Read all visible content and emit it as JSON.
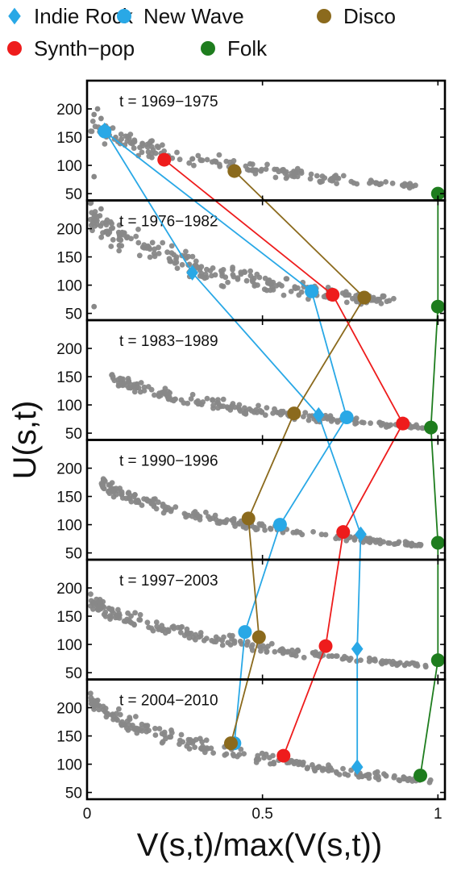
{
  "chart_data": {
    "type": "scatter",
    "xlabel": "V(s,t)/max(V(s,t))",
    "ylabel": "U(s,t)",
    "xlim": [
      0,
      1.02
    ],
    "ylim": [
      38,
      250
    ],
    "x_ticks": [
      0,
      0.5,
      1
    ],
    "x_tick_labels": [
      "0",
      "0.5",
      "1"
    ],
    "y_ticks": [
      50,
      100,
      150,
      200
    ],
    "y_tick_labels": [
      "50",
      "100",
      "150",
      "200"
    ],
    "grid": false,
    "legend_position": "top",
    "panels": [
      "t = 1969−1975",
      "t = 1976−1982",
      "t = 1983−1989",
      "t = 1990−1996",
      "t = 1997−2003",
      "t = 2004−2010"
    ],
    "series": [
      {
        "name": "Indie Rock",
        "color": "#29a8e6",
        "marker": "diamond",
        "points": [
          [
            0.05,
            162
          ],
          [
            0.3,
            122
          ],
          [
            0.66,
            82
          ],
          [
            0.78,
            83
          ],
          [
            0.77,
            92
          ],
          [
            0.77,
            95
          ]
        ]
      },
      {
        "name": "New Wave",
        "color": "#29a8e6",
        "marker": "circle",
        "points": [
          [
            0.05,
            160
          ],
          [
            0.64,
            89
          ],
          [
            0.74,
            78
          ],
          [
            0.55,
            100
          ],
          [
            0.45,
            122
          ],
          [
            0.42,
            137
          ]
        ]
      },
      {
        "name": "Disco",
        "color": "#8b6a1d",
        "marker": "circle",
        "points": [
          [
            0.42,
            90
          ],
          [
            0.79,
            78
          ],
          [
            0.59,
            85
          ],
          [
            0.46,
            111
          ],
          [
            0.49,
            113
          ],
          [
            0.41,
            137
          ]
        ]
      },
      {
        "name": "Synth−pop",
        "color": "#ee1c1c",
        "marker": "circle",
        "points": [
          [
            0.22,
            110
          ],
          [
            0.7,
            83
          ],
          [
            0.9,
            67
          ],
          [
            0.73,
            87
          ],
          [
            0.68,
            97
          ],
          [
            0.56,
            115
          ]
        ]
      },
      {
        "name": "Folk",
        "color": "#1e7d1e",
        "marker": "circle",
        "points": [
          [
            1.0,
            50
          ],
          [
            1.0,
            62
          ],
          [
            0.98,
            60
          ],
          [
            1.0,
            68
          ],
          [
            1.0,
            72
          ],
          [
            0.95,
            80
          ]
        ]
      }
    ],
    "background_points_color": "#888888",
    "background_points_note": "unlabeled grey scatter of all other genres in each period"
  },
  "legend": {
    "items": [
      {
        "label": "Indie Rock",
        "color": "#29a8e6",
        "marker": "diamond"
      },
      {
        "label": "New Wave",
        "color": "#29a8e6",
        "marker": "circle"
      },
      {
        "label": "Disco",
        "color": "#8b6a1d",
        "marker": "circle"
      },
      {
        "label": "Synth−pop",
        "color": "#ee1c1c",
        "marker": "circle"
      },
      {
        "label": "Folk",
        "color": "#1e7d1e",
        "marker": "circle"
      }
    ]
  }
}
